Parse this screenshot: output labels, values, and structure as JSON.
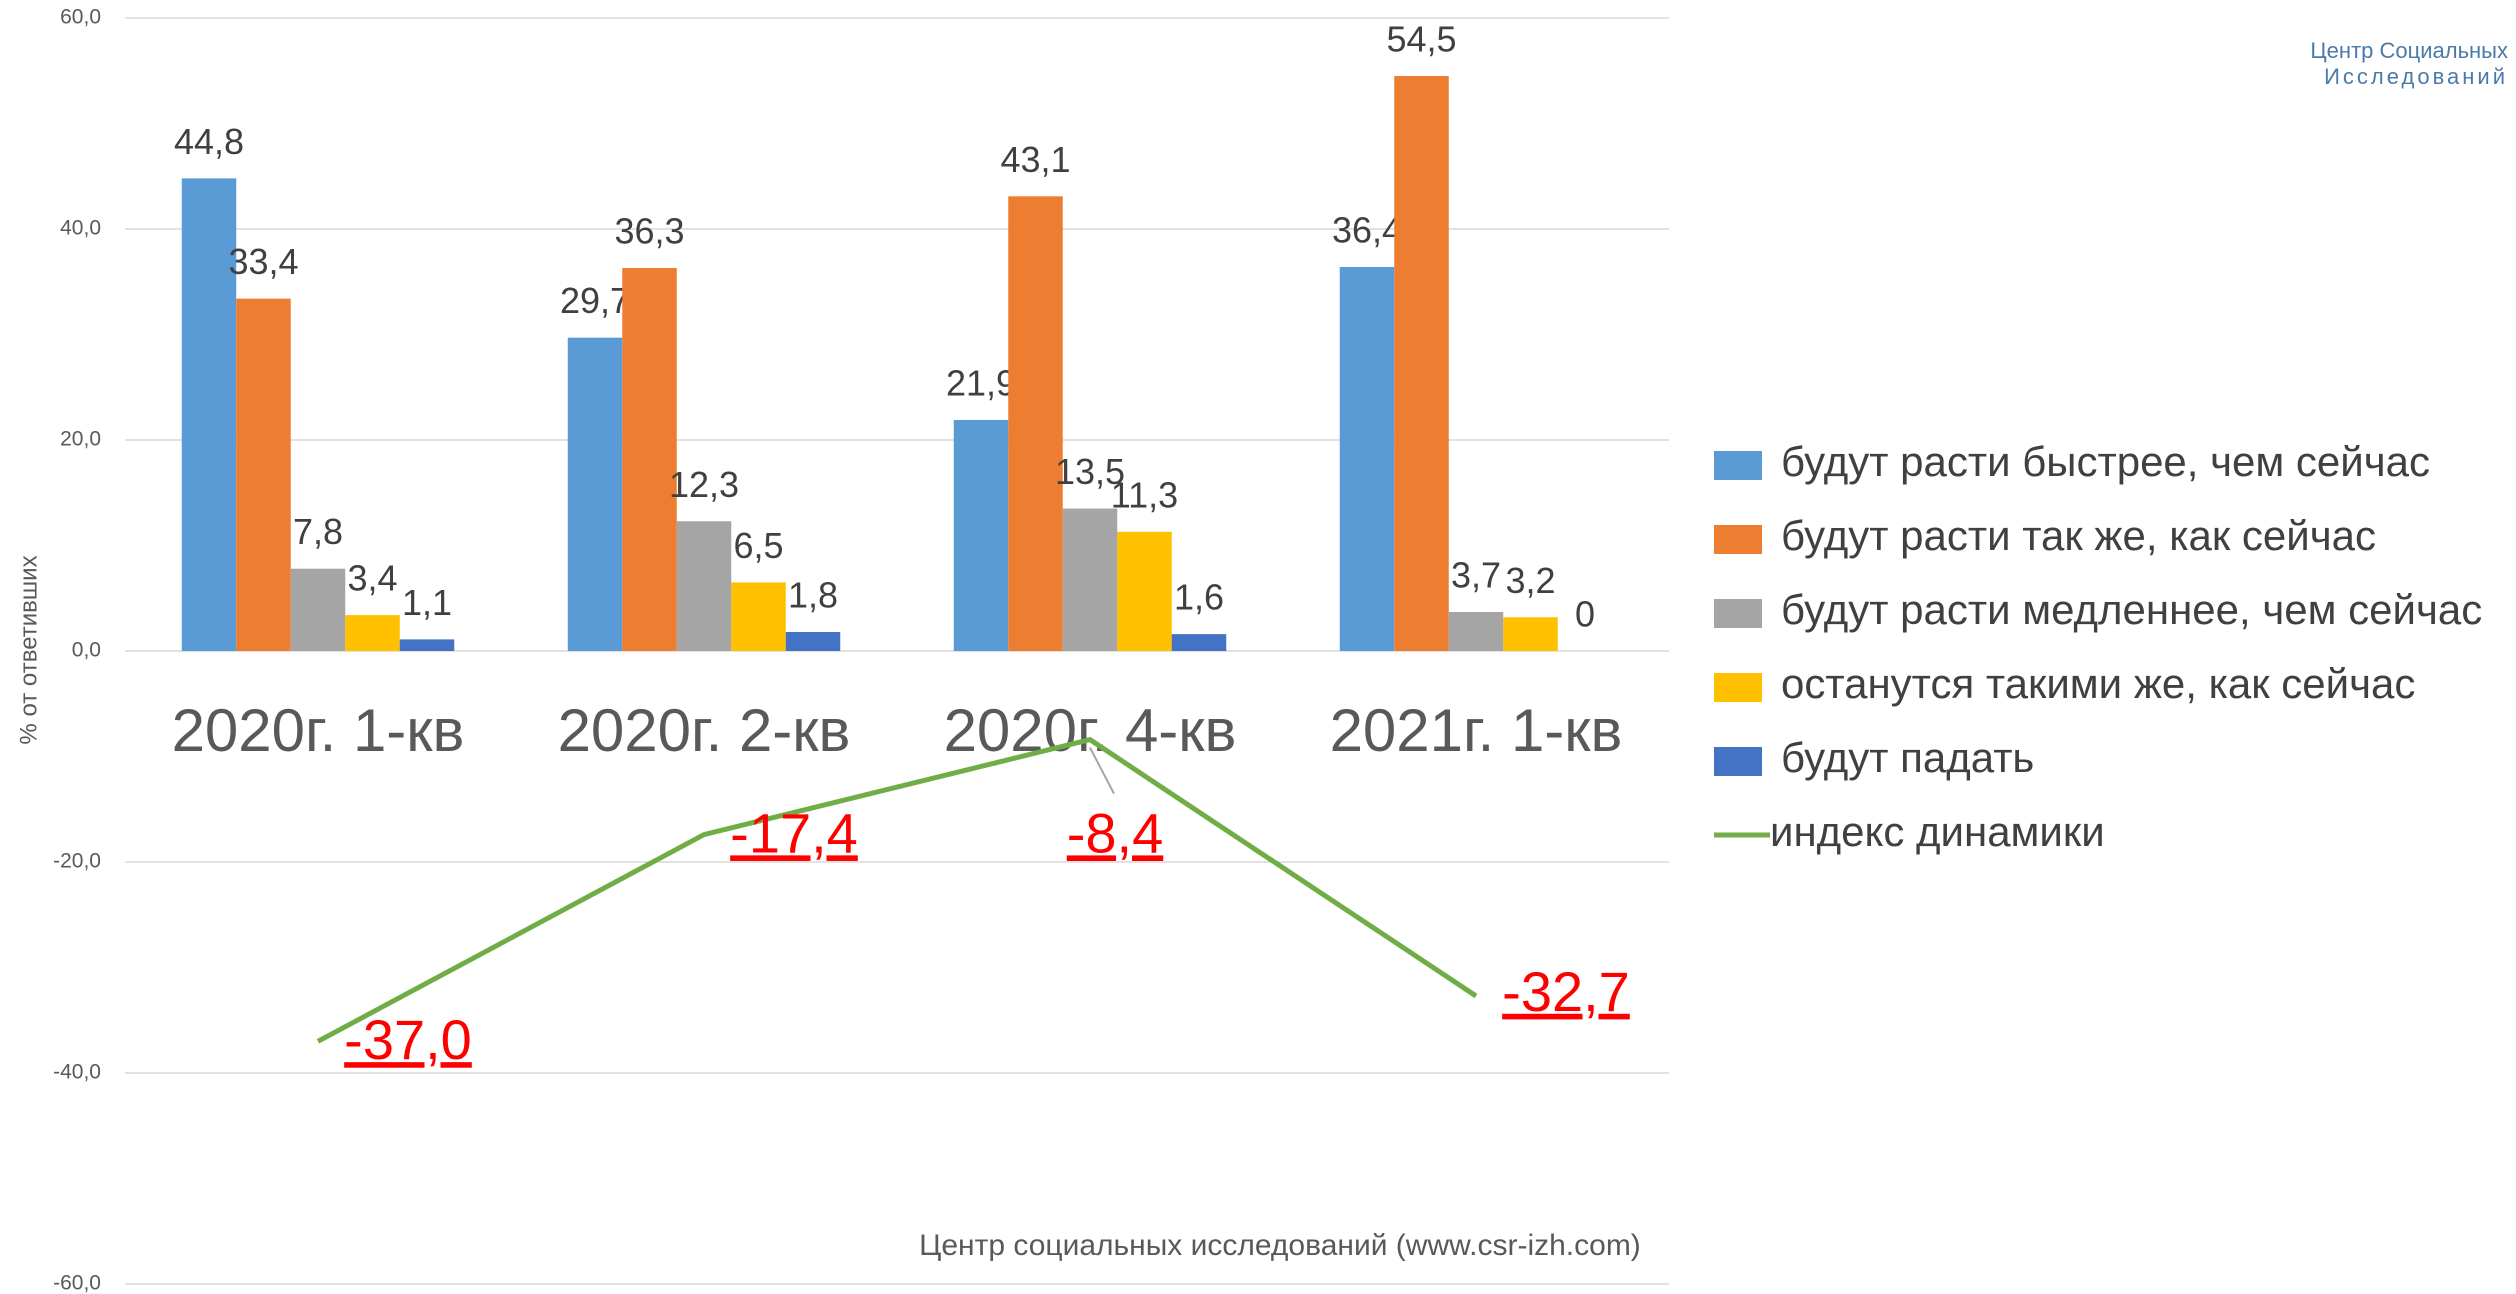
{
  "chart_data": {
    "type": "bar",
    "y_axis_label": "% от ответивших",
    "categories": [
      "2020г. 1-кв",
      "2020г. 2-кв",
      "2020г. 4-кв",
      "2021г. 1-кв"
    ],
    "series": [
      {
        "name": "будут расти быстрее, чем сейчас",
        "color": "#5b9bd5",
        "values": [
          44.8,
          29.7,
          21.9,
          36.4
        ],
        "value_labels": [
          "44,8",
          "29,7",
          "21,9",
          "36,4"
        ]
      },
      {
        "name": "будут расти так же, как сейчас",
        "color": "#ed7d31",
        "values": [
          33.4,
          36.3,
          43.1,
          54.5
        ],
        "value_labels": [
          "33,4",
          "36,3",
          "43,1",
          "54,5"
        ]
      },
      {
        "name": "будут расти медленнее, чем сейчас",
        "color": "#a5a5a5",
        "values": [
          7.8,
          12.3,
          13.5,
          3.7
        ],
        "value_labels": [
          "7,8",
          "12,3",
          "13,5",
          "3,7"
        ]
      },
      {
        "name": "останутся такими же, как сейчас",
        "color": "#ffc000",
        "values": [
          3.4,
          6.5,
          11.3,
          3.2
        ],
        "value_labels": [
          "3,4",
          "6,5",
          "11,3",
          "3,2"
        ]
      },
      {
        "name": "будут падать",
        "color": "#4472c4",
        "values": [
          1.1,
          1.8,
          1.6,
          0
        ],
        "value_labels": [
          "1,1",
          "1,8",
          "1,6",
          "0"
        ]
      },
      {
        "name": "индекс динамики",
        "type": "line",
        "color": "#70ad47",
        "values": [
          -37.0,
          -17.4,
          -8.4,
          -32.7
        ],
        "value_labels": [
          "-37,0",
          "-17,4",
          "-8,4",
          "-32,7"
        ]
      }
    ],
    "ylim": [
      -60,
      60
    ],
    "yticks": [
      {
        "value": 60,
        "label": "60,0"
      },
      {
        "value": 40,
        "label": "40,0"
      },
      {
        "value": 20,
        "label": "20,0"
      },
      {
        "value": 0,
        "label": "0,0"
      },
      {
        "value": -20,
        "label": "-20,0"
      },
      {
        "value": -40,
        "label": "-40,0"
      },
      {
        "value": -60,
        "label": "-60,0"
      }
    ],
    "grid": true,
    "legend": "right",
    "source": "Центр социальных исследований (www.csr-izh.com)",
    "logo": [
      "Центр Социальных",
      "Исследований"
    ]
  }
}
